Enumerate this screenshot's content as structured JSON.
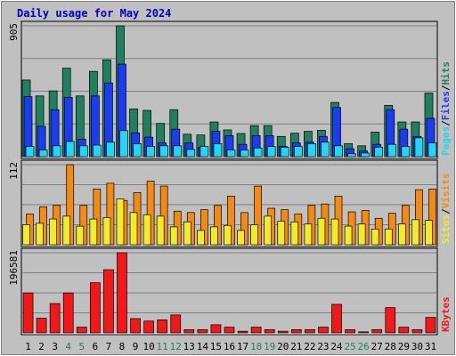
{
  "chart_data": {
    "type": "bar",
    "title": "Daily usage for May 2024",
    "days": [
      "1",
      "2",
      "3",
      "4",
      "5",
      "6",
      "7",
      "8",
      "9",
      "10",
      "11",
      "12",
      "13",
      "14",
      "15",
      "16",
      "17",
      "18",
      "19",
      "20",
      "21",
      "22",
      "23",
      "24",
      "25",
      "26",
      "27",
      "28",
      "29",
      "30",
      "31"
    ],
    "weekend_days": [
      "4",
      "5",
      "11",
      "12",
      "18",
      "19",
      "25",
      "26"
    ],
    "panels": [
      {
        "id": "hits",
        "max_label": "905",
        "ymax": 905,
        "series": [
          {
            "name": "Hits",
            "color": "#1f7f5f",
            "values": [
              530,
              420,
              455,
              612,
              420,
              590,
              670,
              905,
              330,
              320,
              230,
              325,
              155,
              150,
              240,
              185,
              160,
              215,
              215,
              140,
              162,
              175,
              182,
              375,
              90,
              75,
              170,
              355,
              240,
              240,
              440
            ]
          },
          {
            "name": "Files",
            "color": "#1b3cf0",
            "values": [
              415,
              210,
              325,
              410,
              120,
              420,
              510,
              640,
              165,
              135,
              95,
              190,
              95,
              65,
              175,
              145,
              85,
              145,
              145,
              72,
              95,
              100,
              140,
              340,
              55,
              40,
              85,
              325,
              190,
              140,
              265
            ]
          },
          {
            "name": "Pages",
            "color": "#22d6f5",
            "values": [
              70,
              45,
              75,
              105,
              75,
              80,
              100,
              180,
              90,
              70,
              75,
              75,
              50,
              70,
              90,
              45,
              45,
              60,
              70,
              65,
              70,
              90,
              100,
              75,
              20,
              25,
              65,
              85,
              70,
              130,
              95
            ]
          }
        ]
      },
      {
        "id": "visits",
        "max_label": "112",
        "ymax": 112,
        "series": [
          {
            "name": "Visits",
            "color": "#f58a12",
            "values": [
              43,
              53,
              55,
              112,
              55,
              78,
              86,
              62,
              73,
              89,
              82,
              47,
              45,
              49,
              55,
              68,
              45,
              82,
              51,
              49,
              43,
              55,
              57,
              68,
              46,
              48,
              37,
              44,
              55,
              77,
              78
            ]
          },
          {
            "name": "Sites",
            "color": "#f5ea26",
            "values": [
              28,
              30,
              36,
              40,
              26,
              36,
              38,
              64,
              45,
              42,
              40,
              25,
              32,
              20,
              25,
              27,
              20,
              28,
              40,
              33,
              32,
              29,
              37,
              36,
              26,
              29,
              22,
              22,
              29,
              35,
              34
            ]
          }
        ]
      },
      {
        "id": "kbytes",
        "max_label": "196581",
        "ymax": 196581,
        "series": [
          {
            "name": "KBytes",
            "color": "#f01818",
            "values": [
              98000,
              36000,
              72000,
              98000,
              14000,
              123000,
              155000,
              196581,
              35000,
              29000,
              32000,
              44000,
              8000,
              8000,
              20000,
              14000,
              4000,
              14000,
              8000,
              4000,
              8000,
              8000,
              14000,
              70000,
              8000,
              2500,
              8000,
              62000,
              14000,
              8000,
              38000
            ]
          }
        ]
      }
    ]
  }
}
